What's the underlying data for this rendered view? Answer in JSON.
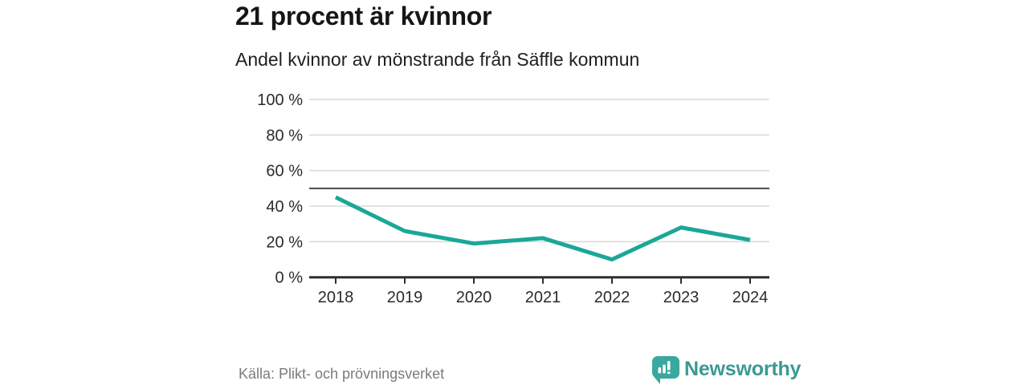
{
  "header": {
    "title": "21 procent är kvinnor",
    "subtitle": "Andel kvinnor av mönstrande från Säffle kommun"
  },
  "chart_data": {
    "type": "line",
    "title": "21 procent är kvinnor",
    "subtitle": "Andel kvinnor av mönstrande från Säffle kommun",
    "categories": [
      "2018",
      "2019",
      "2020",
      "2021",
      "2022",
      "2023",
      "2024"
    ],
    "series": [
      {
        "name": "Andel kvinnor av mönstrande",
        "values": [
          45,
          26,
          19,
          22,
          10,
          28,
          21
        ]
      }
    ],
    "unit": "%",
    "xlabel": "",
    "ylabel": "",
    "ylim": [
      0,
      100
    ],
    "yticks": [
      0,
      20,
      40,
      60,
      80,
      100
    ],
    "ytick_labels": [
      "0 %",
      "20 %",
      "40 %",
      "60 %",
      "80 %",
      "100 %"
    ],
    "reference_line": {
      "value": 50
    },
    "grid": "horizontal",
    "legend_position": "none",
    "line_color": "#1aa798",
    "grid_color": "#d9d9d9",
    "reference_line_color": "#4a4a4a",
    "axis_color": "#2e2e2e",
    "tick_label_color": "#2b2b2b"
  },
  "footer": {
    "source": "Källa: Plikt- och prövningsverket",
    "logo_text": "Newsworthy",
    "brand_color": "#3a9a92",
    "icon_color": "#3aa89e"
  }
}
